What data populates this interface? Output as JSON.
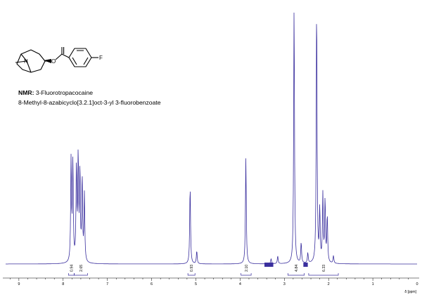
{
  "caption": {
    "label": "NMR:",
    "name": "3-Fluorotropacocaine",
    "iupac": "8-Methyl-8-azabicyclo[3.2.1]oct-3-yl 3-fluorobenzoate"
  },
  "structure_labels": {
    "nitrogen": "N",
    "oxygen": "O",
    "fluorine": "F"
  },
  "chart_data": {
    "type": "line",
    "title": "",
    "xlabel": "δ [ppm]",
    "ylabel": "",
    "xlim": [
      9.3,
      0.0
    ],
    "x_reversed": true,
    "grid": false,
    "line_color": "#3a2f9e",
    "x_ticks": [
      9,
      8,
      7,
      6,
      5,
      4,
      3,
      2,
      1,
      0
    ],
    "peaks": [
      {
        "ppm": 7.82,
        "height": 0.4
      },
      {
        "ppm": 7.78,
        "height": 0.38
      },
      {
        "ppm": 7.7,
        "height": 0.36
      },
      {
        "ppm": 7.66,
        "height": 0.4
      },
      {
        "ppm": 7.62,
        "height": 0.34
      },
      {
        "ppm": 7.57,
        "height": 0.32
      },
      {
        "ppm": 7.52,
        "height": 0.26
      },
      {
        "ppm": 5.13,
        "height": 0.3
      },
      {
        "ppm": 4.98,
        "height": 0.05
      },
      {
        "ppm": 3.87,
        "height": 0.41
      },
      {
        "ppm": 3.3,
        "height": 0.02
      },
      {
        "ppm": 3.15,
        "height": 0.03
      },
      {
        "ppm": 2.78,
        "height": 1.0
      },
      {
        "ppm": 2.62,
        "height": 0.08
      },
      {
        "ppm": 2.47,
        "height": 0.04
      },
      {
        "ppm": 2.27,
        "height": 1.0
      },
      {
        "ppm": 2.2,
        "height": 0.2
      },
      {
        "ppm": 2.13,
        "height": 0.26
      },
      {
        "ppm": 2.08,
        "height": 0.24
      },
      {
        "ppm": 2.03,
        "height": 0.18
      },
      {
        "ppm": 1.89,
        "height": 0.03
      }
    ],
    "solvent_blocks": [
      {
        "from": 3.45,
        "to": 3.25
      },
      {
        "from": 2.57,
        "to": 2.47
      }
    ],
    "integrals": [
      {
        "from": 7.88,
        "to": 7.75,
        "value": "0.94"
      },
      {
        "from": 7.75,
        "to": 7.45,
        "value": "2.65"
      },
      {
        "from": 5.18,
        "to": 5.02,
        "value": "0.93"
      },
      {
        "from": 3.98,
        "to": 3.75,
        "value": "2.10"
      },
      {
        "from": 2.92,
        "to": 2.55,
        "value": "4.84"
      },
      {
        "from": 2.45,
        "to": 1.78,
        "value": "6.33"
      }
    ]
  }
}
